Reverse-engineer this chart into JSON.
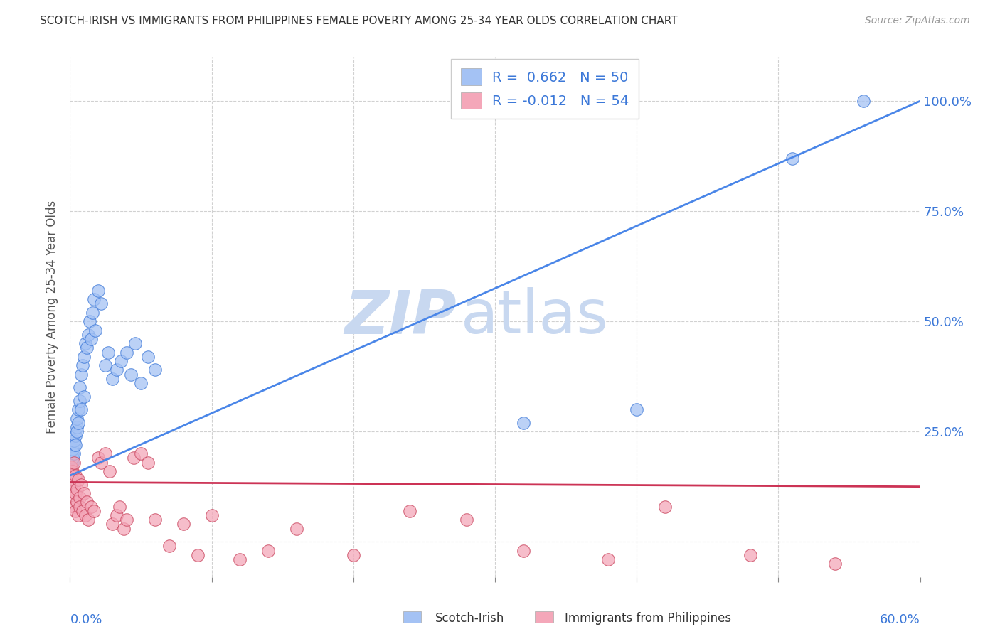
{
  "title": "SCOTCH-IRISH VS IMMIGRANTS FROM PHILIPPINES FEMALE POVERTY AMONG 25-34 YEAR OLDS CORRELATION CHART",
  "source": "Source: ZipAtlas.com",
  "ylabel": "Female Poverty Among 25-34 Year Olds",
  "legend_label1": "Scotch-Irish",
  "legend_label2": "Immigrants from Philippines",
  "R1": 0.662,
  "N1": 50,
  "R2": -0.012,
  "N2": 54,
  "color_blue": "#a4c2f4",
  "color_pink": "#f4a7b9",
  "color_blue_dark": "#3c78d8",
  "color_pink_dark": "#c9435c",
  "line_blue": "#4a86e8",
  "line_pink": "#cc3355",
  "xmin": 0.0,
  "xmax": 0.6,
  "ymin": -0.08,
  "ymax": 1.1,
  "blue_x": [
    0.001,
    0.001,
    0.001,
    0.001,
    0.002,
    0.002,
    0.002,
    0.002,
    0.003,
    0.003,
    0.003,
    0.004,
    0.004,
    0.005,
    0.005,
    0.005,
    0.006,
    0.006,
    0.007,
    0.007,
    0.008,
    0.008,
    0.009,
    0.01,
    0.01,
    0.011,
    0.012,
    0.013,
    0.014,
    0.015,
    0.016,
    0.017,
    0.018,
    0.02,
    0.022,
    0.025,
    0.027,
    0.03,
    0.033,
    0.036,
    0.04,
    0.043,
    0.046,
    0.05,
    0.055,
    0.06,
    0.32,
    0.4,
    0.51,
    0.56
  ],
  "blue_y": [
    0.15,
    0.17,
    0.14,
    0.16,
    0.18,
    0.2,
    0.19,
    0.21,
    0.22,
    0.2,
    0.23,
    0.24,
    0.22,
    0.26,
    0.28,
    0.25,
    0.3,
    0.27,
    0.32,
    0.35,
    0.3,
    0.38,
    0.4,
    0.33,
    0.42,
    0.45,
    0.44,
    0.47,
    0.5,
    0.46,
    0.52,
    0.55,
    0.48,
    0.57,
    0.54,
    0.4,
    0.43,
    0.37,
    0.39,
    0.41,
    0.43,
    0.38,
    0.45,
    0.36,
    0.42,
    0.39,
    0.27,
    0.3,
    0.87,
    1.0
  ],
  "pink_x": [
    0.001,
    0.001,
    0.001,
    0.002,
    0.002,
    0.002,
    0.003,
    0.003,
    0.003,
    0.004,
    0.004,
    0.004,
    0.005,
    0.005,
    0.006,
    0.006,
    0.007,
    0.007,
    0.008,
    0.009,
    0.01,
    0.011,
    0.012,
    0.013,
    0.015,
    0.017,
    0.02,
    0.022,
    0.025,
    0.028,
    0.03,
    0.033,
    0.035,
    0.038,
    0.04,
    0.045,
    0.05,
    0.055,
    0.06,
    0.07,
    0.08,
    0.09,
    0.1,
    0.12,
    0.14,
    0.16,
    0.2,
    0.24,
    0.28,
    0.32,
    0.38,
    0.42,
    0.48,
    0.54
  ],
  "pink_y": [
    0.17,
    0.15,
    0.12,
    0.16,
    0.14,
    0.1,
    0.18,
    0.13,
    0.08,
    0.11,
    0.15,
    0.07,
    0.12,
    0.09,
    0.14,
    0.06,
    0.1,
    0.08,
    0.13,
    0.07,
    0.11,
    0.06,
    0.09,
    0.05,
    0.08,
    0.07,
    0.19,
    0.18,
    0.2,
    0.16,
    0.04,
    0.06,
    0.08,
    0.03,
    0.05,
    0.19,
    0.2,
    0.18,
    0.05,
    -0.01,
    0.04,
    -0.03,
    0.06,
    -0.04,
    -0.02,
    0.03,
    -0.03,
    0.07,
    0.05,
    -0.02,
    -0.04,
    0.08,
    -0.03,
    -0.05
  ]
}
